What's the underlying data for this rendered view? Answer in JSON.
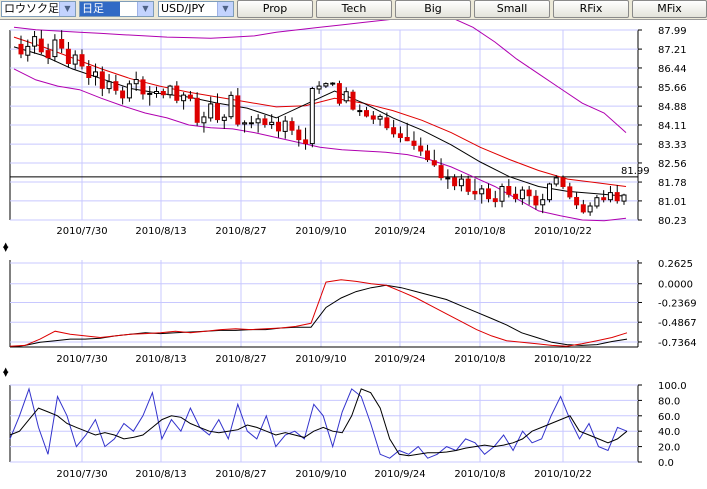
{
  "toolbar": {
    "chart_style": "ロウソク足",
    "period": "日足",
    "symbol": "USD/JPY",
    "buttons": [
      "Prop",
      "Tech",
      "Big",
      "Small",
      "RFix",
      "MFix"
    ]
  },
  "colors": {
    "up": "#ffffff",
    "down": "#dd0000",
    "grid": "#c8c8ff",
    "bollinger": "#b000b0",
    "ma_short": "#000000",
    "ma_long": "#e00000",
    "stoch_k": "#3333cc",
    "stoch_d": "#000000"
  },
  "chart_data": [
    {
      "type": "candlestick",
      "x_labels": [
        "2010/7/30",
        "2010/8/13",
        "2010/8/27",
        "2010/9/10",
        "2010/9/24",
        "2010/10/8",
        "2010/10/22"
      ],
      "y_ticks": [
        "87.99",
        "87.21",
        "86.44",
        "85.66",
        "84.88",
        "84.11",
        "83.33",
        "82.56",
        "81.78",
        "81.01",
        "80.23"
      ],
      "ylim": [
        80.23,
        87.99
      ],
      "hline": {
        "value": 81.99,
        "label": "81.99"
      },
      "grid": true,
      "ohlc": [
        [
          87.4,
          87.76,
          86.84,
          87.01
        ],
        [
          86.96,
          87.6,
          86.7,
          87.32
        ],
        [
          87.33,
          87.95,
          87.02,
          87.72
        ],
        [
          87.62,
          87.99,
          87.0,
          87.1
        ],
        [
          87.15,
          87.43,
          86.6,
          86.86
        ],
        [
          86.9,
          87.82,
          86.7,
          87.58
        ],
        [
          87.6,
          87.98,
          87.05,
          87.25
        ],
        [
          87.2,
          87.5,
          86.45,
          86.62
        ],
        [
          86.6,
          87.16,
          86.38,
          86.97
        ],
        [
          86.98,
          87.2,
          86.38,
          86.52
        ],
        [
          86.5,
          86.76,
          85.75,
          86.05
        ],
        [
          86.1,
          86.62,
          85.72,
          86.28
        ],
        [
          86.28,
          86.5,
          85.29,
          85.61
        ],
        [
          85.6,
          86.19,
          85.4,
          85.88
        ],
        [
          85.88,
          86.16,
          85.35,
          85.53
        ],
        [
          85.5,
          85.68,
          84.95,
          85.22
        ],
        [
          85.22,
          85.93,
          85.06,
          85.79
        ],
        [
          85.8,
          86.29,
          85.5,
          85.97
        ],
        [
          85.95,
          86.1,
          85.15,
          85.38
        ],
        [
          85.38,
          85.7,
          84.9,
          85.4
        ],
        [
          85.4,
          85.68,
          85.22,
          85.48
        ],
        [
          85.48,
          85.6,
          85.2,
          85.35
        ],
        [
          85.35,
          85.75,
          85.2,
          85.7
        ],
        [
          85.7,
          85.9,
          85.0,
          85.12
        ],
        [
          85.1,
          85.45,
          84.74,
          85.33
        ],
        [
          85.33,
          85.5,
          85.08,
          85.2
        ],
        [
          85.2,
          85.45,
          84.08,
          84.22
        ],
        [
          84.2,
          84.65,
          83.8,
          84.44
        ],
        [
          84.4,
          85.27,
          84.25,
          84.97
        ],
        [
          84.98,
          85.4,
          84.2,
          84.33
        ],
        [
          84.3,
          84.55,
          83.95,
          84.43
        ],
        [
          84.45,
          85.48,
          84.35,
          85.32
        ],
        [
          85.3,
          85.62,
          84.05,
          84.15
        ],
        [
          84.15,
          84.3,
          83.8,
          84.2
        ],
        [
          84.2,
          84.48,
          83.98,
          84.2
        ],
        [
          84.2,
          84.55,
          83.8,
          84.36
        ],
        [
          84.36,
          84.52,
          84.0,
          84.13
        ],
        [
          84.13,
          84.55,
          83.95,
          84.22
        ],
        [
          84.22,
          84.45,
          83.6,
          83.87
        ],
        [
          83.85,
          84.48,
          83.55,
          84.27
        ],
        [
          84.25,
          84.42,
          83.7,
          83.9
        ],
        [
          83.9,
          84.08,
          83.23,
          83.51
        ],
        [
          83.5,
          84.0,
          83.1,
          83.35
        ],
        [
          83.35,
          85.67,
          83.2,
          85.6
        ],
        [
          85.58,
          85.9,
          85.38,
          85.7
        ],
        [
          85.7,
          85.85,
          85.62,
          85.8
        ],
        [
          85.78,
          85.86,
          85.7,
          85.82
        ],
        [
          85.8,
          85.92,
          84.9,
          85.0
        ],
        [
          85.1,
          85.65,
          85.0,
          85.47
        ],
        [
          85.45,
          85.55,
          84.7,
          84.76
        ],
        [
          84.7,
          84.95,
          84.48,
          84.7
        ],
        [
          84.7,
          84.85,
          84.42,
          84.48
        ],
        [
          84.48,
          84.68,
          84.15,
          84.35
        ],
        [
          84.35,
          84.55,
          84.08,
          84.46
        ],
        [
          84.4,
          84.62,
          83.9,
          84.0
        ],
        [
          84.0,
          84.32,
          83.6,
          83.75
        ],
        [
          83.75,
          84.05,
          83.4,
          83.6
        ],
        [
          83.6,
          84.2,
          83.45,
          83.47
        ],
        [
          83.45,
          83.85,
          83.1,
          83.28
        ],
        [
          83.25,
          83.6,
          82.85,
          83.05
        ],
        [
          83.05,
          83.3,
          82.6,
          82.7
        ],
        [
          82.65,
          83.1,
          82.4,
          82.48
        ],
        [
          82.45,
          82.75,
          81.85,
          81.96
        ],
        [
          81.95,
          82.3,
          81.5,
          81.95
        ],
        [
          81.95,
          82.1,
          81.45,
          81.63
        ],
        [
          81.63,
          82.1,
          81.4,
          81.9
        ],
        [
          81.9,
          82.04,
          81.25,
          81.4
        ],
        [
          81.4,
          81.92,
          81.05,
          81.3
        ],
        [
          81.3,
          81.66,
          80.9,
          81.5
        ],
        [
          81.5,
          81.72,
          80.95,
          81.1
        ],
        [
          81.1,
          81.42,
          80.75,
          80.98
        ],
        [
          81.0,
          81.72,
          80.75,
          81.6
        ],
        [
          81.6,
          81.9,
          81.15,
          81.28
        ],
        [
          81.28,
          81.59,
          80.95,
          81.1
        ],
        [
          81.1,
          81.6,
          80.85,
          81.45
        ],
        [
          81.45,
          81.62,
          80.85,
          81.22
        ],
        [
          81.2,
          81.45,
          80.65,
          80.85
        ],
        [
          80.85,
          81.3,
          80.51,
          81.06
        ],
        [
          81.06,
          81.75,
          80.95,
          81.7
        ],
        [
          81.7,
          82.06,
          81.6,
          81.95
        ],
        [
          81.95,
          82.05,
          81.5,
          81.6
        ],
        [
          81.58,
          81.75,
          81.08,
          81.17
        ],
        [
          81.15,
          81.35,
          80.68,
          80.85
        ],
        [
          80.85,
          81.05,
          80.49,
          80.56
        ],
        [
          80.56,
          80.95,
          80.4,
          80.8
        ],
        [
          80.8,
          81.25,
          80.7,
          81.14
        ],
        [
          81.14,
          81.45,
          80.95,
          81.06
        ],
        [
          81.06,
          81.62,
          80.95,
          81.35
        ],
        [
          81.35,
          81.66,
          80.9,
          81.02
        ],
        [
          81.0,
          81.3,
          80.85,
          81.25
        ]
      ],
      "sma_short": [
        87.3,
        86.95,
        86.4,
        86.0,
        85.6,
        85.4,
        85.25,
        85.0,
        84.8,
        84.4,
        84.95,
        85.5,
        85.0,
        84.4,
        83.9,
        83.3,
        82.6,
        82.0,
        81.6,
        81.4,
        81.3,
        81.2
      ],
      "sma_long": [
        87.7,
        87.3,
        86.85,
        86.4,
        86.0,
        85.7,
        85.45,
        85.25,
        85.05,
        84.85,
        84.9,
        85.2,
        85.0,
        84.7,
        84.3,
        83.8,
        83.2,
        82.7,
        82.25,
        81.9,
        81.75,
        81.6
      ],
      "bollinger_upper": [
        88.1,
        88.0,
        87.95,
        87.9,
        87.85,
        87.8,
        87.75,
        87.7,
        87.68,
        87.65,
        87.7,
        87.75,
        87.9,
        88.0,
        88.1,
        88.2,
        88.3,
        88.4,
        88.5,
        88.6,
        88.5,
        88.1,
        87.5,
        86.8,
        86.2,
        85.6,
        85.0,
        84.6,
        83.8
      ],
      "bollinger_lower": [
        86.4,
        85.95,
        85.7,
        85.55,
        85.2,
        84.88,
        84.6,
        84.4,
        84.11,
        84.0,
        83.95,
        83.8,
        83.6,
        83.4,
        83.2,
        83.1,
        83.05,
        83.0,
        82.9,
        82.7,
        82.4,
        82.0,
        81.6,
        81.1,
        80.6,
        80.4,
        80.23,
        80.2,
        80.3
      ]
    },
    {
      "type": "line",
      "y_ticks": [
        "0.2625",
        "0.0000",
        "-0.2369",
        "-0.4867",
        "-0.7364"
      ],
      "ylim": [
        -0.8,
        0.3
      ],
      "x_labels": [
        "2010/7/30",
        "2010/8/13",
        "2010/8/27",
        "2010/9/10",
        "2010/9/24",
        "2010/10/8",
        "2010/10/22"
      ],
      "series": [
        {
          "color": "#000000",
          "values": [
            -0.8,
            -0.78,
            -0.74,
            -0.72,
            -0.7,
            -0.7,
            -0.69,
            -0.66,
            -0.64,
            -0.62,
            -0.63,
            -0.62,
            -0.61,
            -0.6,
            -0.59,
            -0.59,
            -0.58,
            -0.58,
            -0.56,
            -0.55,
            -0.55,
            -0.3,
            -0.18,
            -0.1,
            -0.05,
            -0.02,
            -0.05,
            -0.1,
            -0.15,
            -0.2,
            -0.28,
            -0.36,
            -0.44,
            -0.52,
            -0.62,
            -0.68,
            -0.74,
            -0.77,
            -0.78,
            -0.77,
            -0.73,
            -0.7
          ]
        },
        {
          "color": "#dd0000",
          "values": [
            -0.79,
            -0.78,
            -0.7,
            -0.6,
            -0.64,
            -0.66,
            -0.68,
            -0.66,
            -0.64,
            -0.63,
            -0.62,
            -0.6,
            -0.62,
            -0.6,
            -0.58,
            -0.57,
            -0.58,
            -0.57,
            -0.56,
            -0.54,
            -0.5,
            0.02,
            0.05,
            0.03,
            0.0,
            -0.02,
            -0.1,
            -0.18,
            -0.28,
            -0.38,
            -0.48,
            -0.58,
            -0.66,
            -0.72,
            -0.74,
            -0.76,
            -0.78,
            -0.79,
            -0.76,
            -0.72,
            -0.68,
            -0.62
          ]
        }
      ]
    },
    {
      "type": "line",
      "y_ticks": [
        "100.0",
        "80.0",
        "60.0",
        "40.0",
        "20.0",
        "0.0"
      ],
      "ylim": [
        0,
        100
      ],
      "x_labels": [
        "2010/7/30",
        "2010/8/13",
        "2010/8/27",
        "2010/9/10",
        "2010/9/24",
        "2010/10/8",
        "2010/10/22"
      ],
      "series": [
        {
          "color": "#3333cc",
          "values": [
            30,
            60,
            95,
            45,
            10,
            85,
            60,
            20,
            35,
            55,
            20,
            30,
            50,
            40,
            60,
            90,
            30,
            55,
            40,
            70,
            45,
            35,
            55,
            30,
            75,
            40,
            30,
            60,
            20,
            35,
            40,
            30,
            75,
            60,
            20,
            65,
            95,
            85,
            50,
            10,
            5,
            15,
            10,
            20,
            5,
            10,
            20,
            15,
            30,
            25,
            10,
            20,
            35,
            15,
            40,
            25,
            30,
            60,
            85,
            55,
            30,
            50,
            20,
            15,
            45,
            40
          ]
        },
        {
          "color": "#000000",
          "values": [
            35,
            40,
            55,
            70,
            65,
            60,
            50,
            45,
            40,
            35,
            38,
            35,
            30,
            32,
            35,
            45,
            55,
            60,
            58,
            50,
            45,
            40,
            38,
            40,
            42,
            48,
            45,
            40,
            35,
            38,
            35,
            32,
            40,
            45,
            40,
            38,
            60,
            95,
            90,
            70,
            30,
            10,
            8,
            10,
            12,
            12,
            13,
            15,
            18,
            20,
            22,
            20,
            22,
            25,
            30,
            40,
            45,
            50,
            55,
            60,
            40,
            35,
            30,
            25,
            30,
            40
          ]
        }
      ]
    }
  ]
}
